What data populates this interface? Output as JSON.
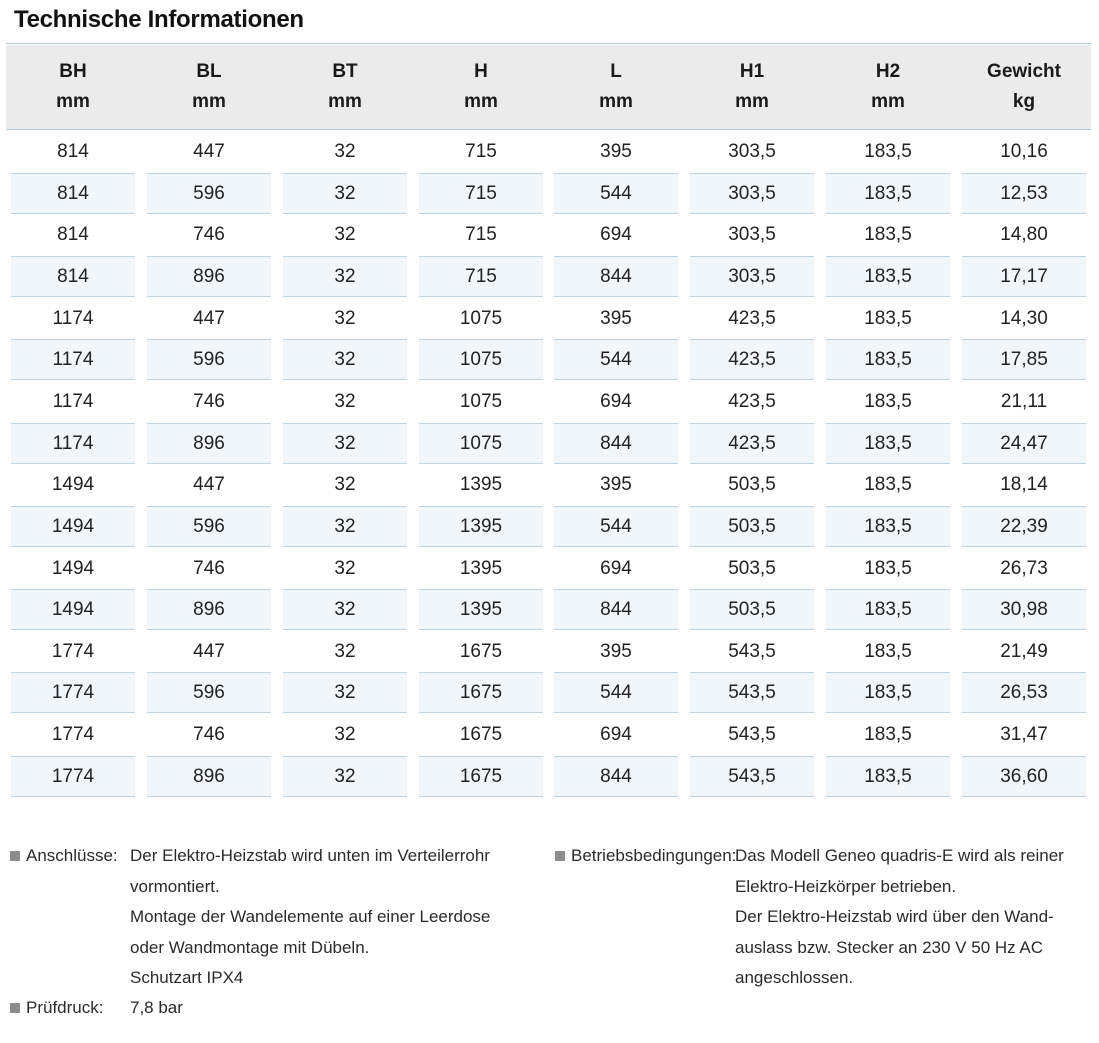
{
  "title": "Technische Informationen",
  "table": {
    "headers": [
      {
        "name": "BH",
        "unit": "mm"
      },
      {
        "name": "BL",
        "unit": "mm"
      },
      {
        "name": "BT",
        "unit": "mm"
      },
      {
        "name": "H",
        "unit": "mm"
      },
      {
        "name": "L",
        "unit": "mm"
      },
      {
        "name": "H1",
        "unit": "mm"
      },
      {
        "name": "H2",
        "unit": "mm"
      },
      {
        "name": "Gewicht",
        "unit": "kg"
      }
    ],
    "rows": [
      [
        "814",
        "447",
        "32",
        "715",
        "395",
        "303,5",
        "183,5",
        "10,16"
      ],
      [
        "814",
        "596",
        "32",
        "715",
        "544",
        "303,5",
        "183,5",
        "12,53"
      ],
      [
        "814",
        "746",
        "32",
        "715",
        "694",
        "303,5",
        "183,5",
        "14,80"
      ],
      [
        "814",
        "896",
        "32",
        "715",
        "844",
        "303,5",
        "183,5",
        "17,17"
      ],
      [
        "1174",
        "447",
        "32",
        "1075",
        "395",
        "423,5",
        "183,5",
        "14,30"
      ],
      [
        "1174",
        "596",
        "32",
        "1075",
        "544",
        "423,5",
        "183,5",
        "17,85"
      ],
      [
        "1174",
        "746",
        "32",
        "1075",
        "694",
        "423,5",
        "183,5",
        "21,11"
      ],
      [
        "1174",
        "896",
        "32",
        "1075",
        "844",
        "423,5",
        "183,5",
        "24,47"
      ],
      [
        "1494",
        "447",
        "32",
        "1395",
        "395",
        "503,5",
        "183,5",
        "18,14"
      ],
      [
        "1494",
        "596",
        "32",
        "1395",
        "544",
        "503,5",
        "183,5",
        "22,39"
      ],
      [
        "1494",
        "746",
        "32",
        "1395",
        "694",
        "503,5",
        "183,5",
        "26,73"
      ],
      [
        "1494",
        "896",
        "32",
        "1395",
        "844",
        "503,5",
        "183,5",
        "30,98"
      ],
      [
        "1774",
        "447",
        "32",
        "1675",
        "395",
        "543,5",
        "183,5",
        "21,49"
      ],
      [
        "1774",
        "596",
        "32",
        "1675",
        "544",
        "543,5",
        "183,5",
        "26,53"
      ],
      [
        "1774",
        "746",
        "32",
        "1675",
        "694",
        "543,5",
        "183,5",
        "31,47"
      ],
      [
        "1774",
        "896",
        "32",
        "1675",
        "844",
        "543,5",
        "183,5",
        "36,60"
      ]
    ]
  },
  "notes": {
    "anschluesse": {
      "label": "Anschlüsse:",
      "lines": [
        "Der Elektro-Heizstab wird unten im Verteilerrohr",
        "vormontiert.",
        "Montage der Wandelemente auf einer Leerdose",
        "oder Wandmontage mit Dübeln.",
        "Schutzart IPX4"
      ]
    },
    "pruefdruck": {
      "label": "Prüfdruck:",
      "lines": [
        "7,8 bar"
      ]
    },
    "betrieb": {
      "label": "Betriebsbedingungen:",
      "lines": [
        "Das Modell Geneo quadris-E wird als reiner",
        "Elektro-Heizkörper betrieben.",
        "Der Elektro-Heizstab wird über den Wand-",
        "auslass bzw. Stecker an 230 V 50 Hz AC",
        "angeschlossen."
      ]
    }
  }
}
